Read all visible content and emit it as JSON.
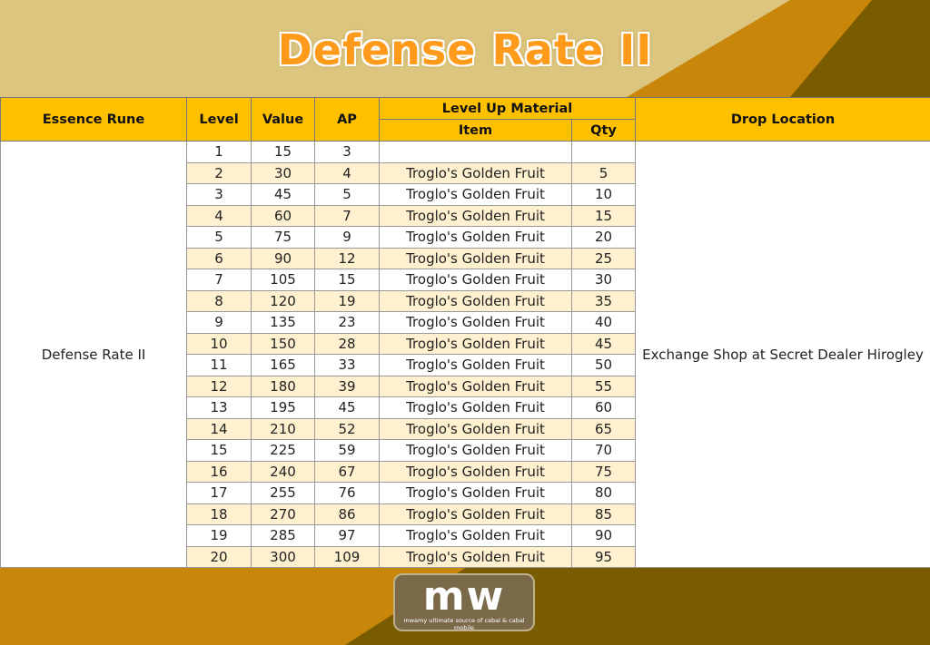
{
  "title": "Defense Rate II",
  "table": {
    "headers": {
      "essence_rune": "Essence Rune",
      "level": "Level",
      "value": "Value",
      "ap": "AP",
      "level_up_material": "Level Up Material",
      "item": "Item",
      "qty": "Qty",
      "drop_location": "Drop Location"
    },
    "essence_rune": "Defense Rate II",
    "drop_location": "Exchange Shop at Secret Dealer Hirogley",
    "rows": [
      {
        "level": "1",
        "value": "15",
        "ap": "3",
        "item": "",
        "qty": ""
      },
      {
        "level": "2",
        "value": "30",
        "ap": "4",
        "item": "Troglo's Golden Fruit",
        "qty": "5"
      },
      {
        "level": "3",
        "value": "45",
        "ap": "5",
        "item": "Troglo's Golden Fruit",
        "qty": "10"
      },
      {
        "level": "4",
        "value": "60",
        "ap": "7",
        "item": "Troglo's Golden Fruit",
        "qty": "15"
      },
      {
        "level": "5",
        "value": "75",
        "ap": "9",
        "item": "Troglo's Golden Fruit",
        "qty": "20"
      },
      {
        "level": "6",
        "value": "90",
        "ap": "12",
        "item": "Troglo's Golden Fruit",
        "qty": "25"
      },
      {
        "level": "7",
        "value": "105",
        "ap": "15",
        "item": "Troglo's Golden Fruit",
        "qty": "30"
      },
      {
        "level": "8",
        "value": "120",
        "ap": "19",
        "item": "Troglo's Golden Fruit",
        "qty": "35"
      },
      {
        "level": "9",
        "value": "135",
        "ap": "23",
        "item": "Troglo's Golden Fruit",
        "qty": "40"
      },
      {
        "level": "10",
        "value": "150",
        "ap": "28",
        "item": "Troglo's Golden Fruit",
        "qty": "45"
      },
      {
        "level": "11",
        "value": "165",
        "ap": "33",
        "item": "Troglo's Golden Fruit",
        "qty": "50"
      },
      {
        "level": "12",
        "value": "180",
        "ap": "39",
        "item": "Troglo's Golden Fruit",
        "qty": "55"
      },
      {
        "level": "13",
        "value": "195",
        "ap": "45",
        "item": "Troglo's Golden Fruit",
        "qty": "60"
      },
      {
        "level": "14",
        "value": "210",
        "ap": "52",
        "item": "Troglo's Golden Fruit",
        "qty": "65"
      },
      {
        "level": "15",
        "value": "225",
        "ap": "59",
        "item": "Troglo's Golden Fruit",
        "qty": "70"
      },
      {
        "level": "16",
        "value": "240",
        "ap": "67",
        "item": "Troglo's Golden Fruit",
        "qty": "75"
      },
      {
        "level": "17",
        "value": "255",
        "ap": "76",
        "item": "Troglo's Golden Fruit",
        "qty": "80"
      },
      {
        "level": "18",
        "value": "270",
        "ap": "86",
        "item": "Troglo's Golden Fruit",
        "qty": "85"
      },
      {
        "level": "19",
        "value": "285",
        "ap": "97",
        "item": "Troglo's Golden Fruit",
        "qty": "90"
      },
      {
        "level": "20",
        "value": "300",
        "ap": "109",
        "item": "Troglo's Golden Fruit",
        "qty": "95"
      }
    ]
  },
  "watermark": {
    "letters": "mw",
    "tagline": "mwamy ultimate source of cabal & cabal mobile"
  },
  "logo": {
    "text": "mw",
    "tagline": "mwamy ultimate source of cabal & cabal mobile"
  },
  "colors": {
    "header": "#ffc000",
    "row_alt": "#fff1cf",
    "title": "#ff9a1a",
    "gold": "#c8860a",
    "dark_brown": "#7a5c00"
  }
}
